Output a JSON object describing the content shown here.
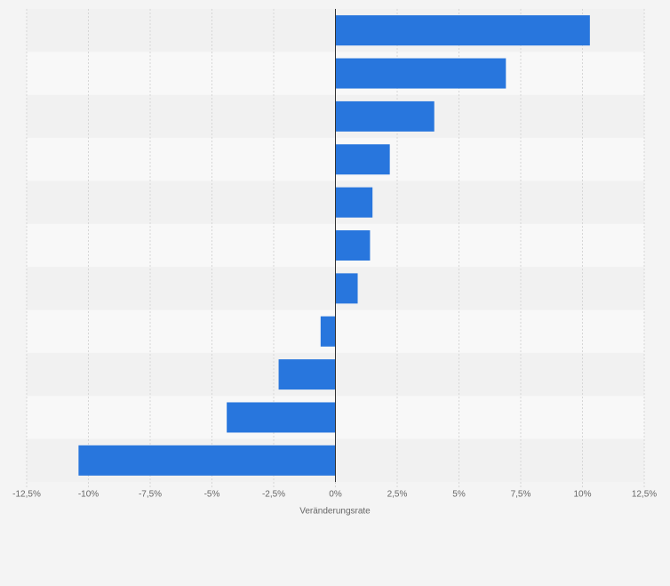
{
  "chart_data": {
    "type": "hbar",
    "x_label": "Veränderungsrate",
    "categories": [
      null,
      null,
      null,
      null,
      null,
      null,
      null,
      null,
      null,
      null,
      null
    ],
    "values": [
      10.3,
      6.9,
      4.0,
      2.2,
      1.5,
      1.4,
      0.9,
      -0.6,
      -2.3,
      -4.4,
      -10.4
    ],
    "color": "#2876dd",
    "xlim": [
      -12.5,
      12.5
    ],
    "xticks": [
      {
        "value": -12.5,
        "label": "-12,5%"
      },
      {
        "value": -10,
        "label": "-10%"
      },
      {
        "value": -7.5,
        "label": "-7,5%"
      },
      {
        "value": -5,
        "label": "-5%"
      },
      {
        "value": -2.5,
        "label": "-2,5%"
      },
      {
        "value": 0,
        "label": "0%"
      },
      {
        "value": 2.5,
        "label": "2,5%"
      },
      {
        "value": 5,
        "label": "5%"
      },
      {
        "value": 7.5,
        "label": "7,5%"
      },
      {
        "value": 10,
        "label": "10%"
      },
      {
        "value": 12.5,
        "label": "12,5%"
      }
    ],
    "grid": true
  }
}
